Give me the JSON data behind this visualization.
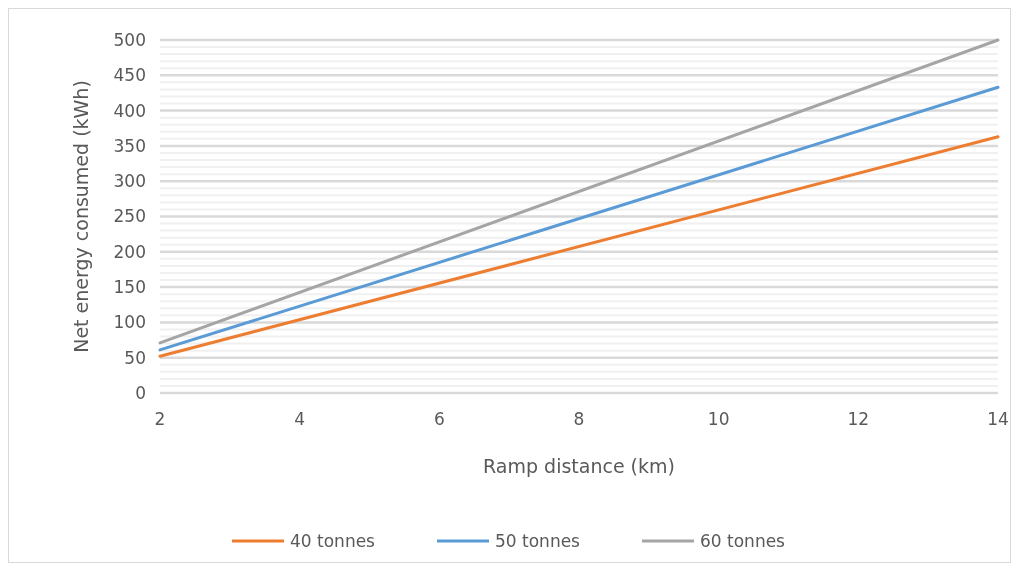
{
  "chart_data": {
    "type": "line",
    "xlabel": "Ramp distance (km)",
    "ylabel": "Net energy consumed (kWh)",
    "x": [
      2,
      14
    ],
    "series": [
      {
        "name": "40 tonnes",
        "color": "#ed7d31",
        "values": [
          52,
          363
        ]
      },
      {
        "name": "50 tonnes",
        "color": "#5b9bd5",
        "values": [
          61,
          433
        ]
      },
      {
        "name": "60 tonnes",
        "color": "#a5a5a5",
        "values": [
          71,
          500
        ]
      }
    ],
    "xlim": [
      2,
      14
    ],
    "xticks": [
      2,
      4,
      6,
      8,
      10,
      12,
      14
    ],
    "ylim": [
      0,
      500
    ],
    "yticks": [
      0,
      {
        "value": 10,
        "label": null
      },
      {
        "value": 20,
        "label": null
      },
      {
        "value": 30,
        "label": null
      },
      {
        "value": 40,
        "label": null
      },
      50,
      {
        "value": 60,
        "label": null
      },
      {
        "value": 70,
        "label": null
      },
      {
        "value": 80,
        "label": null
      },
      {
        "value": 90,
        "label": null
      },
      100,
      {
        "value": 110,
        "label": null
      },
      {
        "value": 120,
        "label": null
      },
      {
        "value": 130,
        "label": null
      },
      {
        "value": 140,
        "label": null
      },
      150,
      {
        "value": 160,
        "label": null
      },
      {
        "value": 170,
        "label": null
      },
      {
        "value": 180,
        "label": null
      },
      {
        "value": 190,
        "label": null
      },
      200,
      {
        "value": 210,
        "label": null
      },
      {
        "value": 220,
        "label": null
      },
      {
        "value": 230,
        "label": null
      },
      {
        "value": 240,
        "label": null
      },
      250,
      {
        "value": 260,
        "label": null
      },
      {
        "value": 270,
        "label": null
      },
      {
        "value": 280,
        "label": null
      },
      {
        "value": 290,
        "label": null
      },
      300,
      {
        "value": 310,
        "label": null
      },
      {
        "value": 320,
        "label": null
      },
      {
        "value": 330,
        "label": null
      },
      {
        "value": 340,
        "label": null
      },
      350,
      {
        "value": 360,
        "label": null
      },
      {
        "value": 370,
        "label": null
      },
      {
        "value": 380,
        "label": null
      },
      {
        "value": 390,
        "label": null
      },
      400,
      {
        "value": 410,
        "label": null
      },
      {
        "value": 420,
        "label": null
      },
      {
        "value": 430,
        "label": null
      },
      {
        "value": 440,
        "label": null
      },
      450,
      {
        "value": 460,
        "label": null
      },
      {
        "value": 470,
        "label": null
      },
      {
        "value": 480,
        "label": null
      },
      {
        "value": 490,
        "label": null
      },
      500
    ],
    "grid": "y",
    "legend": "bottom",
    "marker": "none",
    "line_style": "solid"
  }
}
